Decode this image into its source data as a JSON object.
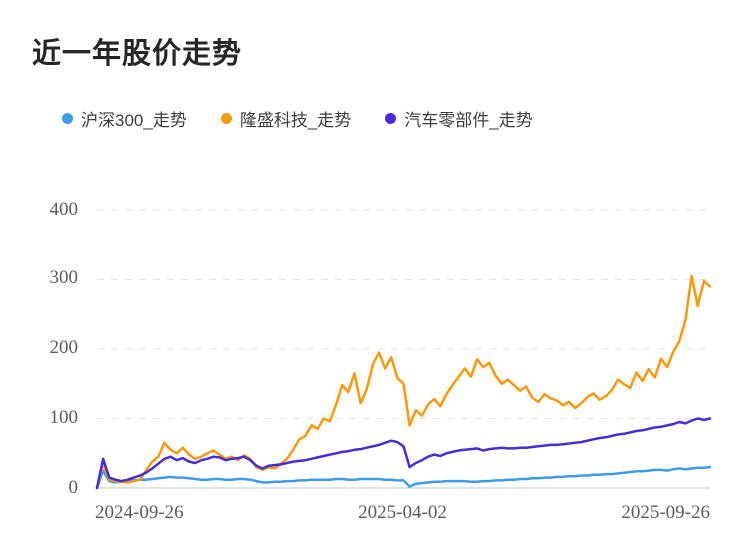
{
  "page": {
    "title": "近一年股价走势"
  },
  "legend": {
    "items": [
      {
        "label": "沪深300_走势",
        "color": "#3d9cea"
      },
      {
        "label": "隆盛科技_走势",
        "color": "#f7990d"
      },
      {
        "label": "汽车零部件_走势",
        "color": "#452ed4"
      }
    ]
  },
  "chart_data": {
    "type": "line",
    "title": "近一年股价走势",
    "x_range": [
      "2024-09-26",
      "2025-09-26"
    ],
    "x_labels": [
      "2024-09-26",
      "2025-04-02",
      "2025-09-26"
    ],
    "ylim": [
      0,
      400
    ],
    "yticks": [
      0,
      100,
      200,
      300,
      400
    ],
    "ytick_labels": [
      "0",
      "100",
      "200",
      "300",
      "400"
    ],
    "grid": "horizontal-dashed",
    "legend_position": "top",
    "unit": "percent_change",
    "colors": {
      "grid": "#e3e3e3",
      "axis": "#d9d9d9"
    },
    "series": [
      {
        "name": "沪深300_走势",
        "color": "#3d9cea",
        "values": [
          0,
          25,
          10,
          8,
          9,
          10,
          11,
          12,
          12,
          13,
          14,
          15,
          16,
          15,
          15,
          14,
          13,
          12,
          12,
          13,
          13,
          12,
          12,
          13,
          13,
          12,
          10,
          8,
          8,
          9,
          9,
          10,
          10,
          11,
          11,
          12,
          12,
          12,
          12,
          13,
          13,
          12,
          12,
          13,
          13,
          13,
          13,
          12,
          12,
          11,
          11,
          2,
          6,
          7,
          8,
          9,
          9,
          10,
          10,
          10,
          10,
          9,
          9,
          10,
          10,
          11,
          11,
          12,
          12,
          13,
          13,
          14,
          14,
          15,
          15,
          16,
          16,
          17,
          17,
          18,
          18,
          19,
          19,
          20,
          20,
          21,
          22,
          23,
          24,
          24,
          25,
          26,
          26,
          25,
          27,
          28,
          27,
          28,
          29,
          29,
          30
        ]
      },
      {
        "name": "隆盛科技_走势",
        "color": "#f7990d",
        "values": [
          0,
          35,
          12,
          10,
          9,
          8,
          10,
          12,
          25,
          38,
          45,
          65,
          55,
          50,
          58,
          48,
          42,
          45,
          50,
          54,
          48,
          42,
          45,
          40,
          47,
          42,
          30,
          26,
          30,
          28,
          35,
          42,
          55,
          70,
          75,
          90,
          85,
          100,
          96,
          120,
          148,
          138,
          165,
          122,
          142,
          178,
          195,
          172,
          188,
          158,
          150,
          90,
          112,
          104,
          120,
          128,
          118,
          135,
          148,
          160,
          172,
          160,
          185,
          174,
          180,
          162,
          150,
          156,
          148,
          140,
          146,
          130,
          124,
          135,
          129,
          126,
          119,
          124,
          115,
          122,
          131,
          136,
          127,
          132,
          141,
          156,
          149,
          144,
          166,
          154,
          171,
          159,
          186,
          174,
          196,
          212,
          242,
          305,
          262,
          298,
          290
        ]
      },
      {
        "name": "汽车零部件_走势",
        "color": "#452ed4",
        "values": [
          0,
          42,
          15,
          12,
          10,
          12,
          15,
          18,
          22,
          28,
          35,
          42,
          45,
          40,
          43,
          38,
          36,
          40,
          42,
          45,
          44,
          40,
          42,
          43,
          45,
          40,
          32,
          28,
          32,
          33,
          34,
          36,
          38,
          39,
          40,
          42,
          44,
          46,
          48,
          50,
          52,
          53,
          55,
          56,
          58,
          60,
          62,
          65,
          68,
          66,
          60,
          30,
          36,
          40,
          45,
          48,
          46,
          50,
          52,
          54,
          55,
          56,
          57,
          54,
          56,
          57,
          58,
          57,
          57,
          58,
          58,
          59,
          60,
          61,
          62,
          62,
          63,
          64,
          65,
          66,
          68,
          70,
          72,
          73,
          75,
          77,
          78,
          80,
          82,
          83,
          85,
          87,
          88,
          90,
          92,
          95,
          93,
          97,
          100,
          98,
          100
        ]
      }
    ]
  }
}
